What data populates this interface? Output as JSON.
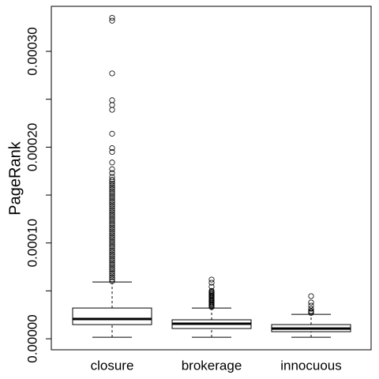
{
  "chart_data": {
    "type": "box",
    "ylabel": "PageRank",
    "categories": [
      "closure",
      "brokerage",
      "innocuous"
    ],
    "ylim": [
      -1.15e-05,
      0.000347
    ],
    "yticks": [
      {
        "value": 0,
        "label": "0.00000"
      },
      {
        "value": 5e-05,
        "label": null
      },
      {
        "value": 0.0001,
        "label": "0.00010"
      },
      {
        "value": 0.00015,
        "label": null
      },
      {
        "value": 0.0002,
        "label": "0.00020"
      },
      {
        "value": 0.00025,
        "label": null
      },
      {
        "value": 0.0003,
        "label": "0.00030"
      }
    ],
    "boxes": [
      {
        "low": 1.6e-06,
        "q1": 1.48e-05,
        "median": 2.06e-05,
        "q3": 3.21e-05,
        "high": 5.93e-05,
        "outliers": [
          6e-05,
          6.2e-05,
          6.4e-05,
          6.6e-05,
          6.8e-05,
          7e-05,
          7.2e-05,
          7.4e-05,
          7.6e-05,
          7.8e-05,
          8e-05,
          8.2e-05,
          8.4e-05,
          8.6e-05,
          8.8e-05,
          9e-05,
          9.2e-05,
          9.4e-05,
          9.6e-05,
          9.8e-05,
          0.0001,
          0.000102,
          0.000104,
          0.000106,
          0.000108,
          0.00011,
          0.000112,
          0.000114,
          0.000116,
          0.000118,
          0.00012,
          0.000122,
          0.000124,
          0.000126,
          0.000128,
          0.00013,
          0.000132,
          0.000134,
          0.000136,
          0.000138,
          0.00014,
          0.000142,
          0.000144,
          0.000146,
          0.000148,
          0.00015,
          0.000152,
          0.000154,
          0.000156,
          0.000158,
          0.00016,
          0.000162,
          0.000164,
          0.000166,
          0.000169,
          0.000173,
          0.000177,
          0.000184,
          0.000195,
          0.000199,
          0.000214,
          0.000239,
          0.000244,
          0.000249,
          0.000277,
          0.000332,
          0.000335
        ]
      },
      {
        "low": 1.6e-06,
        "q1": 1.07e-05,
        "median": 1.57e-05,
        "q3": 1.98e-05,
        "high": 3.21e-05,
        "outliers": [
          3.3e-05,
          3.4e-05,
          3.5e-05,
          3.6e-05,
          3.7e-05,
          3.8e-05,
          3.9e-05,
          4e-05,
          4.1e-05,
          4.2e-05,
          4.3e-05,
          4.4e-05,
          4.5e-05,
          4.6e-05,
          4.7e-05,
          4.8e-05,
          4.9e-05,
          5e-05,
          5.44e-05,
          5.85e-05,
          6.18e-05
        ]
      },
      {
        "low": 1.6e-06,
        "q1": 7.4e-06,
        "median": 1.07e-05,
        "q3": 1.48e-05,
        "high": 2.55e-05,
        "outliers": [
          2.7e-05,
          2.8e-05,
          2.9e-05,
          3.13e-05,
          3.46e-05,
          3.79e-05,
          4.45e-05
        ]
      }
    ]
  }
}
